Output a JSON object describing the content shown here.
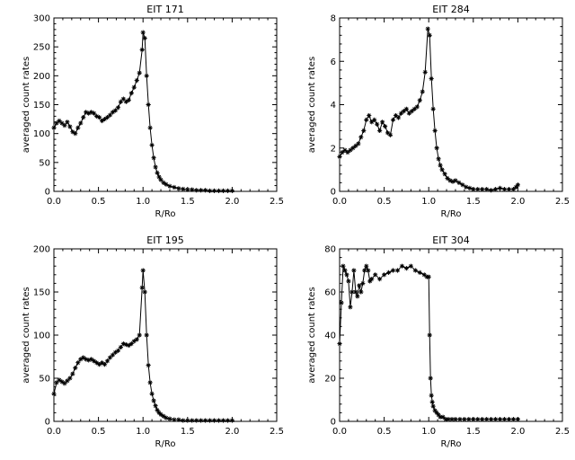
{
  "figure_title": "",
  "chart_data": [
    {
      "type": "line",
      "title": "EIT 171",
      "xlabel": "R/Ro",
      "ylabel": "averaged count rates",
      "xlim": [
        0,
        2.5
      ],
      "ylim": [
        0,
        300
      ],
      "xticks": [
        "0.0",
        "0.5",
        "1.0",
        "1.5",
        "2.0",
        "2.5"
      ],
      "yticks": [
        "0",
        "50",
        "100",
        "150",
        "200",
        "250",
        "300"
      ],
      "marker": "asterisk",
      "series": [
        {
          "x": [
            0.0,
            0.03,
            0.06,
            0.09,
            0.12,
            0.15,
            0.18,
            0.21,
            0.24,
            0.27,
            0.3,
            0.33,
            0.36,
            0.39,
            0.42,
            0.45,
            0.48,
            0.51,
            0.54,
            0.57,
            0.6,
            0.63,
            0.66,
            0.69,
            0.72,
            0.75,
            0.78,
            0.81,
            0.84,
            0.87,
            0.9,
            0.93,
            0.96,
            0.99,
            1.0,
            1.02,
            1.04,
            1.06,
            1.08,
            1.1,
            1.12,
            1.14,
            1.16,
            1.18,
            1.2,
            1.23,
            1.26,
            1.3,
            1.35,
            1.4,
            1.45,
            1.5,
            1.55,
            1.6,
            1.65,
            1.7,
            1.75,
            1.8,
            1.85,
            1.9,
            1.95,
            2.0
          ],
          "y": [
            110,
            118,
            122,
            118,
            114,
            120,
            112,
            103,
            100,
            110,
            118,
            128,
            137,
            135,
            137,
            135,
            130,
            128,
            122,
            125,
            128,
            132,
            137,
            140,
            145,
            155,
            160,
            155,
            158,
            170,
            180,
            192,
            205,
            245,
            275,
            265,
            200,
            150,
            110,
            80,
            58,
            42,
            32,
            25,
            20,
            15,
            12,
            9,
            7,
            5,
            4,
            3,
            3,
            2,
            2,
            2,
            1,
            1,
            1,
            1,
            1,
            1
          ]
        }
      ]
    },
    {
      "type": "line",
      "title": "EIT 284",
      "xlabel": "R/Ro",
      "ylabel": "averaged count rates",
      "xlim": [
        0,
        2.5
      ],
      "ylim": [
        0,
        8
      ],
      "xticks": [
        "0.0",
        "0.5",
        "1.0",
        "1.5",
        "2.0",
        "2.5"
      ],
      "yticks": [
        "0",
        "2",
        "4",
        "6",
        "8"
      ],
      "marker": "asterisk",
      "series": [
        {
          "x": [
            0.0,
            0.03,
            0.06,
            0.09,
            0.12,
            0.15,
            0.18,
            0.21,
            0.24,
            0.27,
            0.3,
            0.33,
            0.36,
            0.39,
            0.42,
            0.45,
            0.48,
            0.51,
            0.54,
            0.57,
            0.6,
            0.63,
            0.66,
            0.69,
            0.72,
            0.75,
            0.78,
            0.81,
            0.84,
            0.87,
            0.9,
            0.93,
            0.96,
            0.99,
            1.01,
            1.03,
            1.05,
            1.07,
            1.09,
            1.11,
            1.13,
            1.15,
            1.18,
            1.21,
            1.24,
            1.27,
            1.3,
            1.34,
            1.38,
            1.42,
            1.46,
            1.5,
            1.55,
            1.6,
            1.65,
            1.7,
            1.75,
            1.8,
            1.85,
            1.9,
            1.95,
            1.98,
            2.0
          ],
          "y": [
            1.6,
            1.8,
            1.9,
            1.8,
            1.9,
            2.0,
            2.1,
            2.2,
            2.5,
            2.8,
            3.3,
            3.5,
            3.2,
            3.3,
            3.1,
            2.8,
            3.2,
            3.0,
            2.7,
            2.6,
            3.3,
            3.5,
            3.4,
            3.6,
            3.7,
            3.8,
            3.6,
            3.7,
            3.8,
            3.9,
            4.2,
            4.6,
            5.5,
            7.5,
            7.2,
            5.2,
            3.8,
            2.8,
            2.0,
            1.5,
            1.2,
            1.0,
            0.8,
            0.6,
            0.5,
            0.45,
            0.5,
            0.4,
            0.3,
            0.2,
            0.15,
            0.1,
            0.1,
            0.1,
            0.1,
            0.05,
            0.1,
            0.15,
            0.1,
            0.1,
            0.1,
            0.2,
            0.3
          ]
        }
      ]
    },
    {
      "type": "line",
      "title": "EIT 195",
      "xlabel": "R/Ro",
      "ylabel": "averaged count rates",
      "xlim": [
        0,
        2.5
      ],
      "ylim": [
        0,
        200
      ],
      "xticks": [
        "0.0",
        "0.5",
        "1.0",
        "1.5",
        "2.0",
        "2.5"
      ],
      "yticks": [
        "0",
        "50",
        "100",
        "150",
        "200"
      ],
      "marker": "asterisk",
      "series": [
        {
          "x": [
            0.0,
            0.03,
            0.06,
            0.09,
            0.12,
            0.15,
            0.18,
            0.21,
            0.24,
            0.27,
            0.3,
            0.33,
            0.36,
            0.39,
            0.42,
            0.45,
            0.48,
            0.51,
            0.54,
            0.57,
            0.6,
            0.63,
            0.66,
            0.69,
            0.72,
            0.75,
            0.78,
            0.81,
            0.84,
            0.87,
            0.9,
            0.93,
            0.96,
            0.99,
            1.0,
            1.02,
            1.04,
            1.06,
            1.08,
            1.1,
            1.12,
            1.14,
            1.16,
            1.18,
            1.2,
            1.23,
            1.26,
            1.3,
            1.35,
            1.4,
            1.45,
            1.5,
            1.55,
            1.6,
            1.65,
            1.7,
            1.75,
            1.8,
            1.85,
            1.9,
            1.95,
            2.0
          ],
          "y": [
            32,
            45,
            48,
            46,
            44,
            47,
            50,
            55,
            62,
            68,
            72,
            74,
            72,
            71,
            72,
            70,
            68,
            66,
            68,
            66,
            70,
            74,
            77,
            80,
            82,
            86,
            90,
            89,
            88,
            90,
            93,
            95,
            100,
            155,
            175,
            150,
            100,
            65,
            45,
            32,
            24,
            18,
            13,
            10,
            8,
            6,
            4,
            3,
            2,
            2,
            1,
            1,
            1,
            1,
            1,
            1,
            1,
            1,
            1,
            1,
            1,
            1
          ]
        }
      ]
    },
    {
      "type": "line",
      "title": "EIT 304",
      "xlabel": "R/Ro",
      "ylabel": "averaged count rates",
      "xlim": [
        0,
        2.5
      ],
      "ylim": [
        0,
        80
      ],
      "xticks": [
        "0.0",
        "0.5",
        "1.0",
        "1.5",
        "2.0",
        "2.5"
      ],
      "yticks": [
        "0",
        "20",
        "40",
        "60",
        "80"
      ],
      "marker": "asterisk",
      "series": [
        {
          "x": [
            0.0,
            0.02,
            0.04,
            0.06,
            0.08,
            0.1,
            0.12,
            0.14,
            0.16,
            0.18,
            0.2,
            0.22,
            0.24,
            0.26,
            0.28,
            0.3,
            0.32,
            0.34,
            0.36,
            0.4,
            0.45,
            0.5,
            0.55,
            0.6,
            0.65,
            0.7,
            0.75,
            0.8,
            0.85,
            0.9,
            0.95,
            0.98,
            1.0,
            1.01,
            1.02,
            1.03,
            1.04,
            1.05,
            1.07,
            1.09,
            1.11,
            1.13,
            1.16,
            1.19,
            1.22,
            1.26,
            1.3,
            1.35,
            1.4,
            1.45,
            1.5,
            1.55,
            1.6,
            1.65,
            1.7,
            1.75,
            1.8,
            1.85,
            1.9,
            1.95,
            2.0
          ],
          "y": [
            36,
            55,
            72,
            70,
            68,
            65,
            53,
            60,
            70,
            60,
            58,
            63,
            60,
            64,
            70,
            72,
            70,
            65,
            66,
            68,
            66,
            68,
            69,
            70,
            70,
            72,
            71,
            72,
            70,
            69,
            68,
            67,
            67,
            40,
            20,
            12,
            9,
            7,
            5,
            4,
            3,
            2,
            2,
            1,
            1,
            1,
            1,
            1,
            1,
            1,
            1,
            1,
            1,
            1,
            1,
            1,
            1,
            1,
            1,
            1,
            1
          ]
        }
      ]
    }
  ]
}
